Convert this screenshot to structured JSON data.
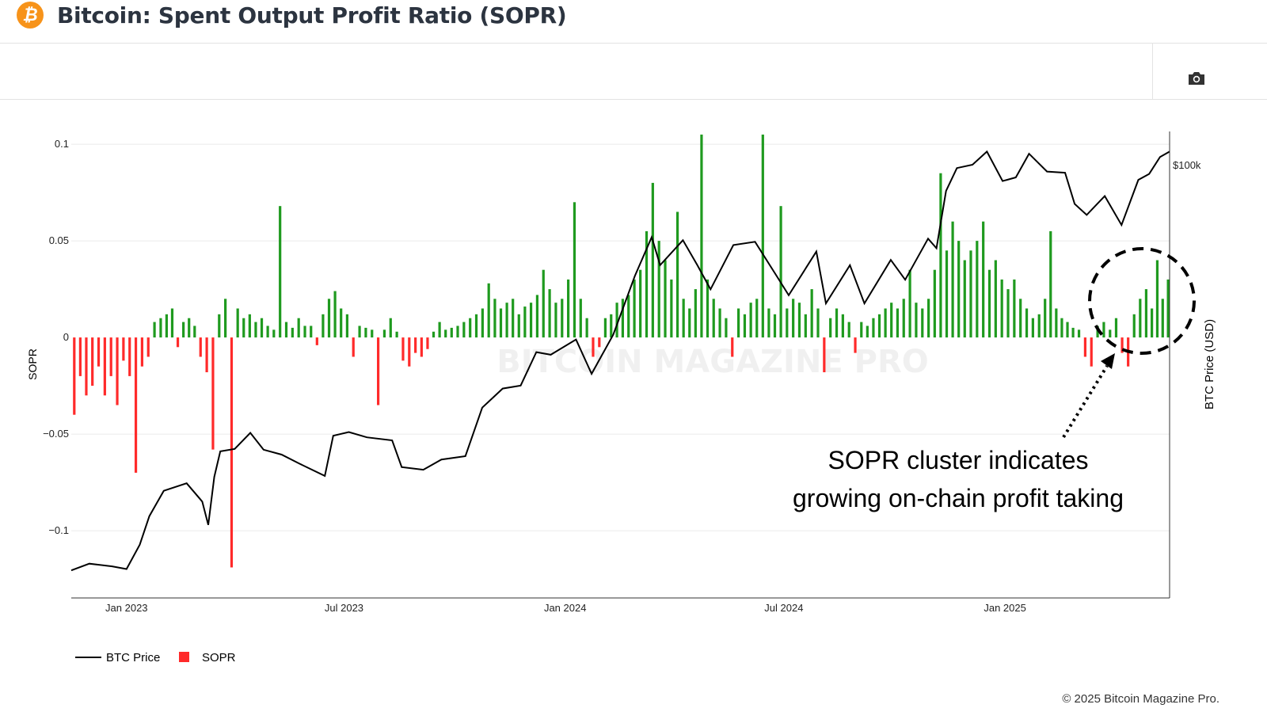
{
  "header": {
    "title": "Bitcoin: Spent Output Profit Ratio (SOPR)",
    "logo_icon": "bitcoin-icon",
    "logo_glyph": "₿"
  },
  "toolbar": {
    "camera_icon": "camera-icon"
  },
  "footer": {
    "copyright": "© 2025 Bitcoin Magazine Pro."
  },
  "watermark": "BITCOIN MAGAZINE PRO",
  "chart_data": {
    "type": "bar+line",
    "title": "",
    "xlim": [
      "2022-11-16",
      "2025-05-18"
    ],
    "x_ticks": [
      {
        "date": "2023-01-01",
        "label": "Jan 2023"
      },
      {
        "date": "2023-07-01",
        "label": "Jul 2023"
      },
      {
        "date": "2024-01-01",
        "label": "Jan 2024"
      },
      {
        "date": "2024-07-01",
        "label": "Jul 2024"
      },
      {
        "date": "2025-01-01",
        "label": "Jan 2025"
      }
    ],
    "y_left": {
      "label": "SOPR",
      "range": [
        -0.1348,
        0.1066
      ],
      "ticks": [
        {
          "v": 0.1,
          "label": "0.1"
        },
        {
          "v": 0.05,
          "label": "0.05"
        },
        {
          "v": 0,
          "label": "0"
        },
        {
          "v": -0.05,
          "label": "−0.05"
        },
        {
          "v": -0.1,
          "label": "−0.1"
        }
      ]
    },
    "y_right": {
      "label": "BTC Price (USD)",
      "scale": "log",
      "range": [
        14600,
        115900
      ],
      "ticks": [
        {
          "v": 100000,
          "label": "$100k"
        }
      ]
    },
    "grid": true,
    "legend": {
      "placement": "bottom-left",
      "items": [
        {
          "name": "BTC Price",
          "color": "#000000",
          "kind": "line"
        },
        {
          "name": "SOPR",
          "color": "#ff2a2a",
          "kind": "bar"
        }
      ]
    },
    "colors": {
      "positive": "#1f9a1f",
      "negative": "#ff2a2a",
      "price": "#000000"
    },
    "annotation": {
      "lines": [
        "SOPR cluster indicates",
        "growing on-chain profit taking"
      ]
    },
    "sopr_by_month": [
      {
        "month": "2022-11",
        "values": [
          -0.04,
          -0.02,
          -0.03
        ]
      },
      {
        "month": "2022-12",
        "values": [
          -0.025,
          -0.015,
          -0.03,
          -0.02,
          -0.035,
          -0.012
        ]
      },
      {
        "month": "2023-01",
        "values": [
          -0.02,
          -0.07,
          -0.015,
          -0.01,
          0.008,
          0.01
        ]
      },
      {
        "month": "2023-02",
        "values": [
          0.012,
          0.015,
          -0.005,
          0.008,
          0.01,
          0.006
        ]
      },
      {
        "month": "2023-03",
        "values": [
          -0.01,
          -0.018,
          -0.058,
          0.012,
          0.02,
          -0.119
        ]
      },
      {
        "month": "2023-04",
        "values": [
          0.015,
          0.01,
          0.012,
          0.008,
          0.01,
          0.006
        ]
      },
      {
        "month": "2023-05",
        "values": [
          0.004,
          0.068,
          0.008,
          0.005,
          0.01,
          0.006
        ]
      },
      {
        "month": "2023-06",
        "values": [
          0.006,
          -0.004,
          0.012,
          0.02,
          0.024,
          0.015
        ]
      },
      {
        "month": "2023-07",
        "values": [
          0.012,
          -0.01,
          0.006,
          0.005,
          0.004,
          -0.035
        ]
      },
      {
        "month": "2023-08",
        "values": [
          0.004,
          0.01,
          0.003,
          -0.012,
          -0.015,
          -0.008
        ]
      },
      {
        "month": "2023-09",
        "values": [
          -0.01,
          -0.006,
          0.003,
          0.008,
          0.004,
          0.005
        ]
      },
      {
        "month": "2023-10",
        "values": [
          0.006,
          0.008,
          0.01,
          0.012,
          0.015,
          0.028
        ]
      },
      {
        "month": "2023-11",
        "values": [
          0.02,
          0.015,
          0.018,
          0.02,
          0.012,
          0.016
        ]
      },
      {
        "month": "2023-12",
        "values": [
          0.018,
          0.022,
          0.035,
          0.025,
          0.018,
          0.02
        ]
      },
      {
        "month": "2024-01",
        "values": [
          0.03,
          0.07,
          0.02,
          0.01,
          -0.01,
          -0.005
        ]
      },
      {
        "month": "2024-02",
        "values": [
          0.01,
          0.012,
          0.018,
          0.02,
          0.022,
          0.03
        ]
      },
      {
        "month": "2024-03",
        "values": [
          0.035,
          0.055,
          0.08,
          0.05,
          0.04,
          0.03
        ]
      },
      {
        "month": "2024-04",
        "values": [
          0.065,
          0.02,
          0.015,
          0.025,
          0.105,
          0.03
        ]
      },
      {
        "month": "2024-05",
        "values": [
          0.02,
          0.015,
          0.01,
          -0.01,
          0.015,
          0.012
        ]
      },
      {
        "month": "2024-06",
        "values": [
          0.018,
          0.02,
          0.105,
          0.015,
          0.012,
          0.068
        ]
      },
      {
        "month": "2024-07",
        "values": [
          0.015,
          0.02,
          0.018,
          0.012,
          0.025,
          0.015
        ]
      },
      {
        "month": "2024-08",
        "values": [
          -0.018,
          0.01,
          0.015,
          0.012,
          0.008,
          -0.008
        ]
      },
      {
        "month": "2024-09",
        "values": [
          0.008,
          0.006,
          0.01,
          0.012,
          0.015,
          0.018
        ]
      },
      {
        "month": "2024-10",
        "values": [
          0.015,
          0.02,
          0.035,
          0.018,
          0.015,
          0.02
        ]
      },
      {
        "month": "2024-11",
        "values": [
          0.035,
          0.085,
          0.045,
          0.06,
          0.05,
          0.04
        ]
      },
      {
        "month": "2024-12",
        "values": [
          0.045,
          0.05,
          0.06,
          0.035,
          0.04,
          0.03
        ]
      },
      {
        "month": "2025-01",
        "values": [
          0.025,
          0.03,
          0.02,
          0.015,
          0.01,
          0.012
        ]
      },
      {
        "month": "2025-02",
        "values": [
          0.02,
          0.055,
          0.015,
          0.01,
          0.008,
          0.005
        ]
      },
      {
        "month": "2025-03",
        "values": [
          0.004,
          -0.01,
          -0.015,
          0.006,
          0.008,
          0.004
        ]
      },
      {
        "month": "2025-04",
        "values": [
          0.01,
          -0.008,
          -0.015,
          0.012,
          0.02,
          0.025
        ]
      },
      {
        "month": "2025-05",
        "values": [
          0.015,
          0.04,
          0.02,
          0.03
        ]
      }
    ],
    "btc_price": [
      [
        "2022-11-16",
        16500
      ],
      [
        "2022-12-01",
        17000
      ],
      [
        "2022-12-20",
        16800
      ],
      [
        "2023-01-01",
        16600
      ],
      [
        "2023-01-12",
        18500
      ],
      [
        "2023-01-20",
        21000
      ],
      [
        "2023-02-01",
        23500
      ],
      [
        "2023-02-20",
        24300
      ],
      [
        "2023-03-05",
        22400
      ],
      [
        "2023-03-10",
        20200
      ],
      [
        "2023-03-15",
        25000
      ],
      [
        "2023-03-20",
        28000
      ],
      [
        "2023-04-01",
        28300
      ],
      [
        "2023-04-14",
        30400
      ],
      [
        "2023-04-25",
        28200
      ],
      [
        "2023-05-10",
        27600
      ],
      [
        "2023-05-25",
        26500
      ],
      [
        "2023-06-15",
        25100
      ],
      [
        "2023-06-22",
        30000
      ],
      [
        "2023-07-05",
        30500
      ],
      [
        "2023-07-20",
        29800
      ],
      [
        "2023-08-10",
        29400
      ],
      [
        "2023-08-18",
        26100
      ],
      [
        "2023-09-05",
        25800
      ],
      [
        "2023-09-20",
        27000
      ],
      [
        "2023-10-10",
        27400
      ],
      [
        "2023-10-24",
        34000
      ],
      [
        "2023-11-10",
        37000
      ],
      [
        "2023-11-25",
        37500
      ],
      [
        "2023-12-08",
        43500
      ],
      [
        "2023-12-20",
        43000
      ],
      [
        "2024-01-10",
        46000
      ],
      [
        "2024-01-23",
        39500
      ],
      [
        "2024-02-10",
        47000
      ],
      [
        "2024-02-28",
        61000
      ],
      [
        "2024-03-13",
        72500
      ],
      [
        "2024-03-20",
        64000
      ],
      [
        "2024-04-08",
        71500
      ],
      [
        "2024-04-20",
        64000
      ],
      [
        "2024-05-01",
        57500
      ],
      [
        "2024-05-20",
        70000
      ],
      [
        "2024-06-07",
        71000
      ],
      [
        "2024-06-25",
        61000
      ],
      [
        "2024-07-05",
        56000
      ],
      [
        "2024-07-28",
        68000
      ],
      [
        "2024-08-05",
        54000
      ],
      [
        "2024-08-25",
        64000
      ],
      [
        "2024-09-06",
        54000
      ],
      [
        "2024-09-28",
        65500
      ],
      [
        "2024-10-10",
        60000
      ],
      [
        "2024-10-29",
        72000
      ],
      [
        "2024-11-05",
        69000
      ],
      [
        "2024-11-13",
        89000
      ],
      [
        "2024-11-22",
        98500
      ],
      [
        "2024-12-05",
        100000
      ],
      [
        "2024-12-17",
        106000
      ],
      [
        "2024-12-30",
        93000
      ],
      [
        "2025-01-10",
        94500
      ],
      [
        "2025-01-21",
        105000
      ],
      [
        "2025-02-05",
        97000
      ],
      [
        "2025-02-20",
        96500
      ],
      [
        "2025-02-28",
        84000
      ],
      [
        "2025-03-10",
        80000
      ],
      [
        "2025-03-25",
        87000
      ],
      [
        "2025-04-08",
        76500
      ],
      [
        "2025-04-22",
        93500
      ],
      [
        "2025-05-01",
        96000
      ],
      [
        "2025-05-10",
        103500
      ],
      [
        "2025-05-18",
        106000
      ]
    ]
  }
}
